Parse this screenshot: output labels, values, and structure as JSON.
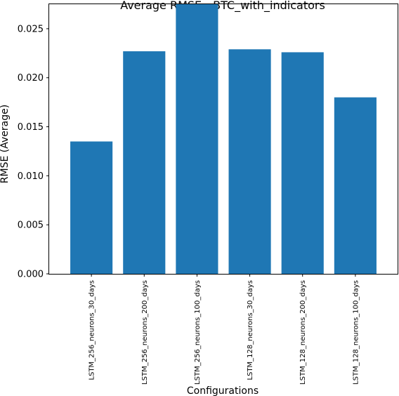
{
  "chart_data": {
    "type": "bar",
    "title": "Average RMSE - BTC_with_indicators",
    "xlabel": "Configurations",
    "ylabel": "RMSE (Average)",
    "categories": [
      "LSTM_256_neurons_30_days",
      "LSTM_256_neurons_200_days",
      "LSTM_256_neurons_100_days",
      "LSTM_128_neurons_30_days",
      "LSTM_128_neurons_200_days",
      "LSTM_128_neurons_100_days"
    ],
    "values": [
      0.0135,
      0.0227,
      0.0275,
      0.0229,
      0.0226,
      0.018
    ],
    "ylim": [
      0,
      0.0275
    ],
    "yticks": [
      0.0,
      0.005,
      0.01,
      0.015,
      0.02,
      0.025
    ],
    "ytick_labels": [
      "0.000",
      "0.005",
      "0.010",
      "0.015",
      "0.020",
      "0.025"
    ],
    "bar_color": "#1f77b4",
    "grid": false,
    "legend": "none"
  }
}
